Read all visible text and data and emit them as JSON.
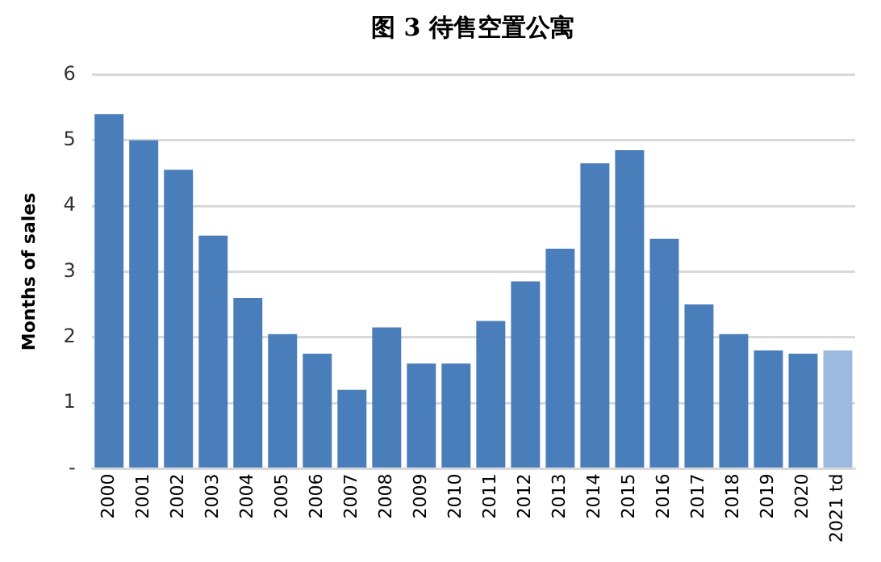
{
  "chart_data": {
    "type": "bar",
    "title": "图 3 待售空置公寓",
    "ylabel": "Months of sales",
    "categories": [
      "2000",
      "2001",
      "2002",
      "2003",
      "2004",
      "2005",
      "2006",
      "2007",
      "2008",
      "2009",
      "2010",
      "2011",
      "2012",
      "2013",
      "2014",
      "2015",
      "2016",
      "2017",
      "2018",
      "2019",
      "2020",
      "2021 td"
    ],
    "values": [
      5.4,
      5.0,
      4.55,
      3.55,
      2.6,
      2.05,
      1.75,
      1.2,
      2.15,
      1.6,
      1.6,
      2.25,
      2.85,
      3.35,
      4.65,
      4.85,
      3.5,
      2.5,
      2.05,
      1.8,
      1.75,
      1.8
    ],
    "colors": [
      "#4a7ebb",
      "#4a7ebb",
      "#4a7ebb",
      "#4a7ebb",
      "#4a7ebb",
      "#4a7ebb",
      "#4a7ebb",
      "#4a7ebb",
      "#4a7ebb",
      "#4a7ebb",
      "#4a7ebb",
      "#4a7ebb",
      "#4a7ebb",
      "#4a7ebb",
      "#4a7ebb",
      "#4a7ebb",
      "#4a7ebb",
      "#4a7ebb",
      "#4a7ebb",
      "#4a7ebb",
      "#4a7ebb",
      "#9dbbe0"
    ],
    "ylim": [
      0,
      6
    ],
    "yticks": [
      {
        "value": 0,
        "label": "-"
      },
      1,
      2,
      3,
      4,
      5,
      6
    ],
    "grid": "y",
    "legend": false
  }
}
